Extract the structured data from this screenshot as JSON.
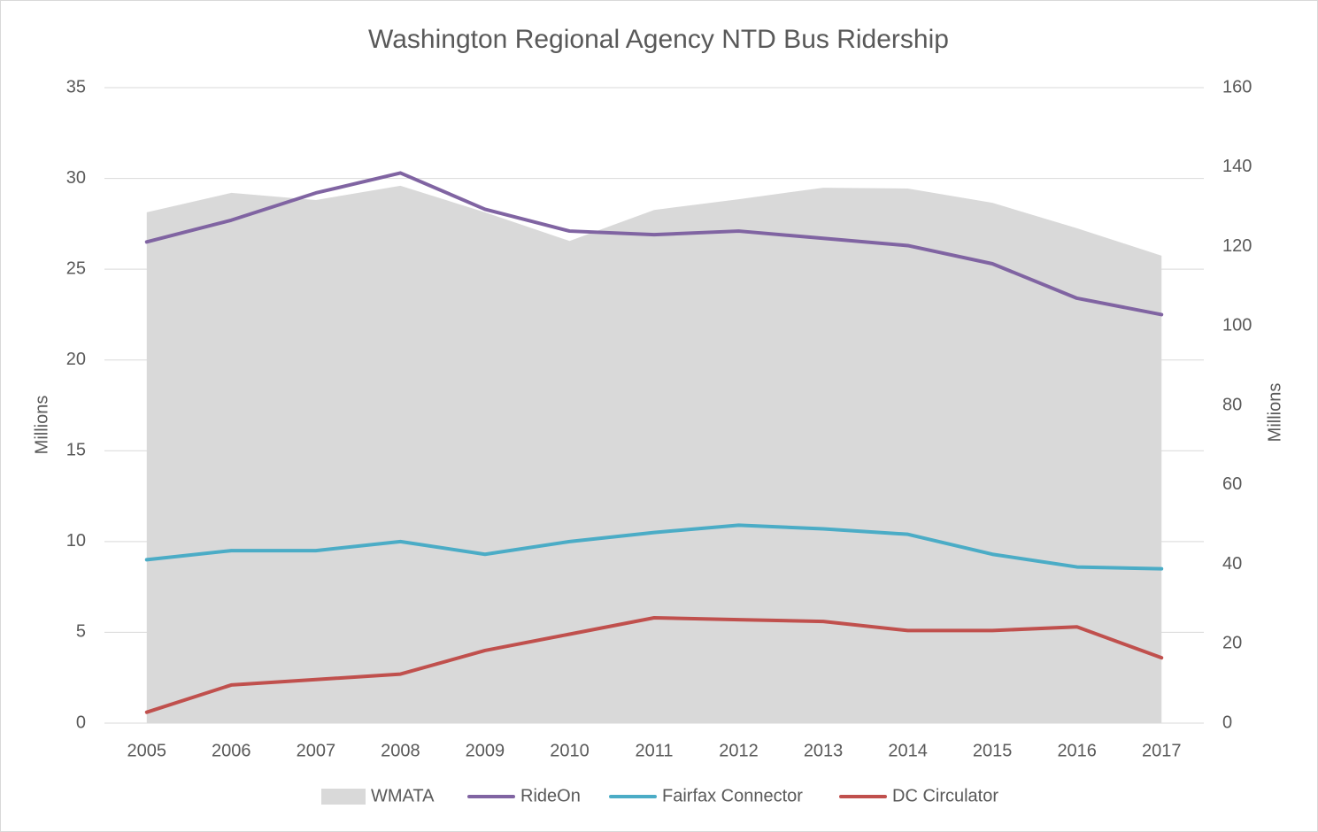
{
  "chart_data": {
    "type": "line",
    "title": "Washington Regional Agency NTD Bus Ridership",
    "y_label": "Millions",
    "y2_label": "Millions",
    "categories": [
      "2005",
      "2006",
      "2007",
      "2008",
      "2009",
      "2010",
      "2011",
      "2012",
      "2013",
      "2014",
      "2015",
      "2016",
      "2017"
    ],
    "ylim": [
      0,
      35
    ],
    "yticks": [
      0,
      5,
      10,
      15,
      20,
      25,
      30,
      35
    ],
    "y2lim": [
      0,
      160
    ],
    "y2ticks": [
      0,
      20,
      40,
      60,
      80,
      100,
      120,
      140,
      160
    ],
    "grid": true,
    "legend": "bottom",
    "series": [
      {
        "name": "WMATA",
        "type": "area",
        "axis": "y2",
        "color": "#d9d9d9",
        "values": [
          128.6,
          133.5,
          131.7,
          135.3,
          128.6,
          121.4,
          129.2,
          131.9,
          134.8,
          134.6,
          131.0,
          124.6,
          117.7
        ]
      },
      {
        "name": "RideOn",
        "type": "line",
        "color": "#8064a2",
        "values": [
          26.5,
          27.7,
          29.2,
          30.3,
          28.3,
          27.1,
          26.9,
          27.1,
          26.7,
          26.3,
          25.3,
          23.4,
          22.5
        ]
      },
      {
        "name": "Fairfax Connector",
        "type": "line",
        "color": "#4bacc6",
        "values": [
          9.0,
          9.5,
          9.5,
          10.0,
          9.3,
          10.0,
          10.5,
          10.9,
          10.7,
          10.4,
          9.3,
          8.6,
          8.5
        ]
      },
      {
        "name": "DC Circulator",
        "type": "line",
        "color": "#c0504d",
        "values": [
          0.6,
          2.1,
          2.4,
          2.7,
          4.0,
          4.9,
          5.8,
          5.7,
          5.6,
          5.1,
          5.1,
          5.3,
          3.6
        ]
      }
    ]
  }
}
